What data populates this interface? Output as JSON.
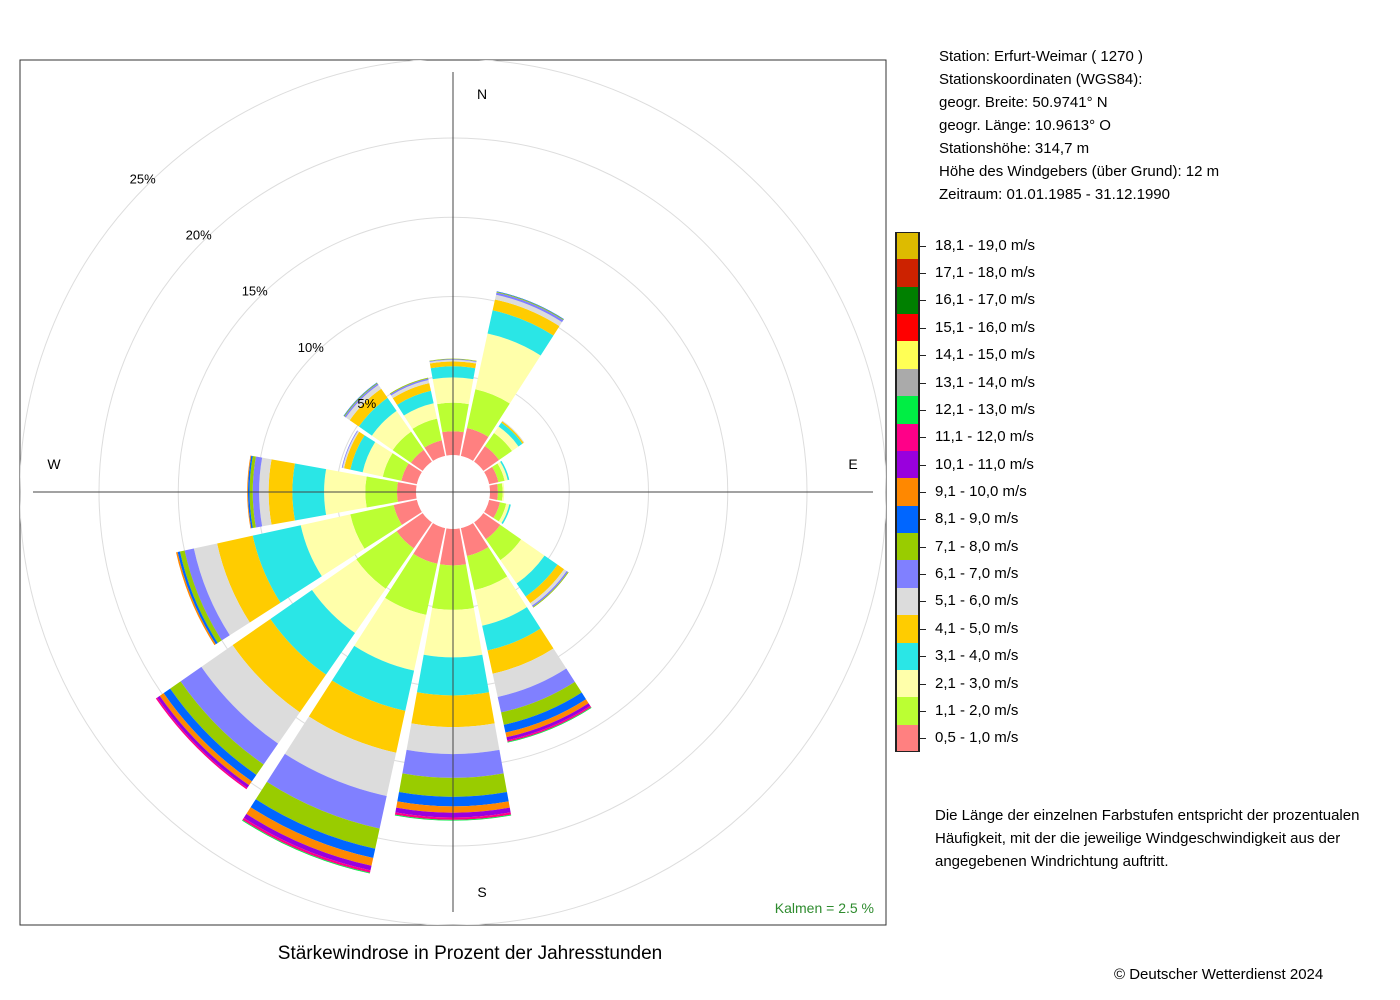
{
  "title": "Stärkewindrose in Prozent der Jahresstunden",
  "copyright": "© Deutscher Wetterdienst  2024",
  "station": {
    "line1": "Station:  Erfurt-Weimar  ( 1270 )",
    "line2": "Stationskoordinaten (WGS84):",
    "line3": "geogr. Breite: 50.9741° N",
    "line4": "geogr. Länge: 10.9613° O",
    "line5": "Stationshöhe: 314,7 m",
    "line6": "Höhe des Windgebers (über Grund): 12 m",
    "line7": "Zeitraum: 01.01.1985 - 31.12.1990"
  },
  "note": {
    "line1": "Die Länge der einzelnen Farbstufen entspricht der prozentualen",
    "line2": "Häufigkeit, mit der die jeweilige Windgeschwindigkeit aus der",
    "line3": "angegebenen Windrichtung auftritt."
  },
  "calm_label": "Kalmen  =  2.5 %",
  "chart_data": {
    "type": "wind-rose",
    "title": "Stärkewindrose in Prozent der Jahresstunden",
    "unit": "%",
    "directions": [
      "N",
      "NNE",
      "NE",
      "ENE",
      "E",
      "ESE",
      "SE",
      "SSE",
      "S",
      "SSW",
      "SW",
      "WSW",
      "W",
      "WNW",
      "NW",
      "NNW"
    ],
    "direction_angles_deg": [
      0,
      22.5,
      45,
      67.5,
      90,
      112.5,
      135,
      157.5,
      180,
      202.5,
      225,
      247.5,
      270,
      292.5,
      315,
      337.5
    ],
    "cardinal_labels": [
      "N",
      "E",
      "S",
      "W"
    ],
    "radial_ticks": [
      5,
      10,
      15,
      20,
      25
    ],
    "radial_tick_labels": [
      "5%",
      "10%",
      "15%",
      "20%",
      "25%"
    ],
    "calm_percent": 2.5,
    "legend_title": "",
    "speed_classes": [
      {
        "label": "0,5 - 1,0 m/s",
        "color": "#FF8080"
      },
      {
        "label": "1,1 - 2,0 m/s",
        "color": "#BBFF33"
      },
      {
        "label": "2,1 - 3,0 m/s",
        "color": "#FFFFAA"
      },
      {
        "label": "3,1 - 4,0 m/s",
        "color": "#2AE6E6"
      },
      {
        "label": "4,1 - 5,0 m/s",
        "color": "#FFCC00"
      },
      {
        "label": "5,1 - 6,0 m/s",
        "color": "#DCDCDC"
      },
      {
        "label": "6,1 - 7,0 m/s",
        "color": "#8080FF"
      },
      {
        "label": "7,1 - 8,0 m/s",
        "color": "#99CC00"
      },
      {
        "label": "8,1 - 9,0 m/s",
        "color": "#0066FF"
      },
      {
        "label": "9,1 - 10,0 m/s",
        "color": "#FF8800"
      },
      {
        "label": "10,1 - 11,0 m/s",
        "color": "#9900DD"
      },
      {
        "label": "11,1 - 12,0 m/s",
        "color": "#FF0088"
      },
      {
        "label": "12,1 - 13,0 m/s",
        "color": "#00EE44"
      },
      {
        "label": "13,1 - 14,0 m/s",
        "color": "#AAAAAA"
      },
      {
        "label": "14,1 - 15,0 m/s",
        "color": "#FFFF55"
      },
      {
        "label": "15,1 - 16,0 m/s",
        "color": "#FF0000"
      },
      {
        "label": "16,1 - 17,0 m/s",
        "color": "#008000"
      },
      {
        "label": "17,1 - 18,0 m/s",
        "color": "#CC2200"
      },
      {
        "label": "18,1 - 19,0 m/s",
        "color": "#DDBB00"
      }
    ],
    "frequencies_percent": [
      [
        1.5,
        1.8,
        1.6,
        0.7,
        0.3,
        0.1,
        0.05,
        0.03
      ],
      [
        1.8,
        2.5,
        3.6,
        1.5,
        0.7,
        0.3,
        0.15,
        0.05,
        0.03
      ],
      [
        1.2,
        1.0,
        0.5,
        0.3,
        0.1,
        0.05
      ],
      [
        0.6,
        0.4,
        0.2,
        0.1
      ],
      [
        0.5,
        0.3,
        0.1
      ],
      [
        0.7,
        0.4,
        0.2,
        0.1
      ],
      [
        1.3,
        1.6,
        1.8,
        1.0,
        0.5,
        0.2,
        0.1,
        0.05
      ],
      [
        1.8,
        2.2,
        2.3,
        1.6,
        1.5,
        1.5,
        1.0,
        0.8,
        0.5,
        0.3,
        0.2,
        0.1,
        0.05
      ],
      [
        2.3,
        2.8,
        3.0,
        2.4,
        2.0,
        1.7,
        1.5,
        1.2,
        0.6,
        0.4,
        0.3,
        0.15,
        0.05
      ],
      [
        2.3,
        3.3,
        3.6,
        2.6,
        2.7,
        2.8,
        2.1,
        1.3,
        0.6,
        0.5,
        0.3,
        0.15,
        0.05
      ],
      [
        2.0,
        3.1,
        3.4,
        3.2,
        2.9,
        2.4,
        1.6,
        0.8,
        0.5,
        0.3,
        0.2,
        0.1
      ],
      [
        1.5,
        2.8,
        3.2,
        3.1,
        2.3,
        1.5,
        0.6,
        0.3,
        0.15,
        0.1
      ],
      [
        1.2,
        2.0,
        2.6,
        2.0,
        1.5,
        0.6,
        0.4,
        0.2,
        0.1,
        0.05
      ],
      [
        1.0,
        1.2,
        1.3,
        0.8,
        0.4,
        0.1,
        0.05
      ],
      [
        0.9,
        1.4,
        1.6,
        1.0,
        0.7,
        0.3,
        0.1,
        0.05,
        0.03
      ],
      [
        1.0,
        1.4,
        1.0,
        0.8,
        0.5,
        0.2,
        0.1,
        0.05
      ]
    ]
  }
}
